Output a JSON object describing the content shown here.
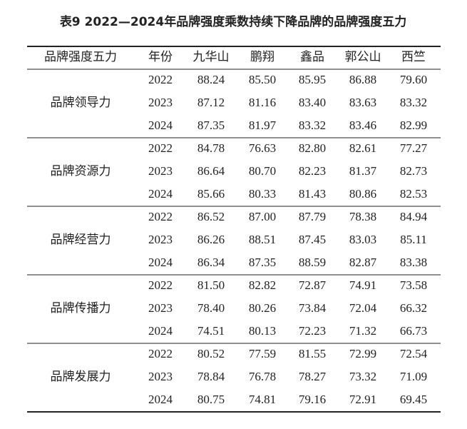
{
  "title": "表9 2022—2024年品牌强度乘数持续下降品牌的品牌强度五力",
  "table": {
    "headers": [
      "品牌强度五力",
      "年份",
      "九华山",
      "鹏翔",
      "鑫品",
      "郭公山",
      "西竺"
    ],
    "groups": [
      {
        "name": "品牌领导力",
        "rows": [
          [
            "2022",
            "88.24",
            "85.50",
            "85.95",
            "86.88",
            "79.60"
          ],
          [
            "2023",
            "87.12",
            "81.16",
            "83.40",
            "83.63",
            "83.32"
          ],
          [
            "2024",
            "87.35",
            "81.97",
            "83.32",
            "83.46",
            "82.99"
          ]
        ]
      },
      {
        "name": "品牌资源力",
        "rows": [
          [
            "2022",
            "84.78",
            "76.63",
            "82.80",
            "82.61",
            "77.27"
          ],
          [
            "2023",
            "86.64",
            "80.70",
            "82.23",
            "81.37",
            "82.73"
          ],
          [
            "2024",
            "85.66",
            "80.33",
            "81.43",
            "80.86",
            "82.53"
          ]
        ]
      },
      {
        "name": "品牌经营力",
        "rows": [
          [
            "2022",
            "86.52",
            "87.00",
            "87.79",
            "78.38",
            "84.94"
          ],
          [
            "2023",
            "86.26",
            "88.51",
            "87.45",
            "83.03",
            "85.11"
          ],
          [
            "2024",
            "86.34",
            "87.35",
            "88.59",
            "82.87",
            "83.38"
          ]
        ]
      },
      {
        "name": "品牌传播力",
        "rows": [
          [
            "2022",
            "81.50",
            "82.82",
            "72.87",
            "74.91",
            "73.58"
          ],
          [
            "2023",
            "78.40",
            "80.26",
            "73.84",
            "72.04",
            "66.32"
          ],
          [
            "2024",
            "74.51",
            "80.13",
            "72.23",
            "71.32",
            "66.73"
          ]
        ]
      },
      {
        "name": "品牌发展力",
        "rows": [
          [
            "2022",
            "80.52",
            "77.59",
            "81.55",
            "72.99",
            "72.54"
          ],
          [
            "2023",
            "78.84",
            "76.78",
            "78.27",
            "73.32",
            "71.09"
          ],
          [
            "2024",
            "80.75",
            "74.81",
            "79.16",
            "72.91",
            "69.45"
          ]
        ]
      }
    ]
  }
}
